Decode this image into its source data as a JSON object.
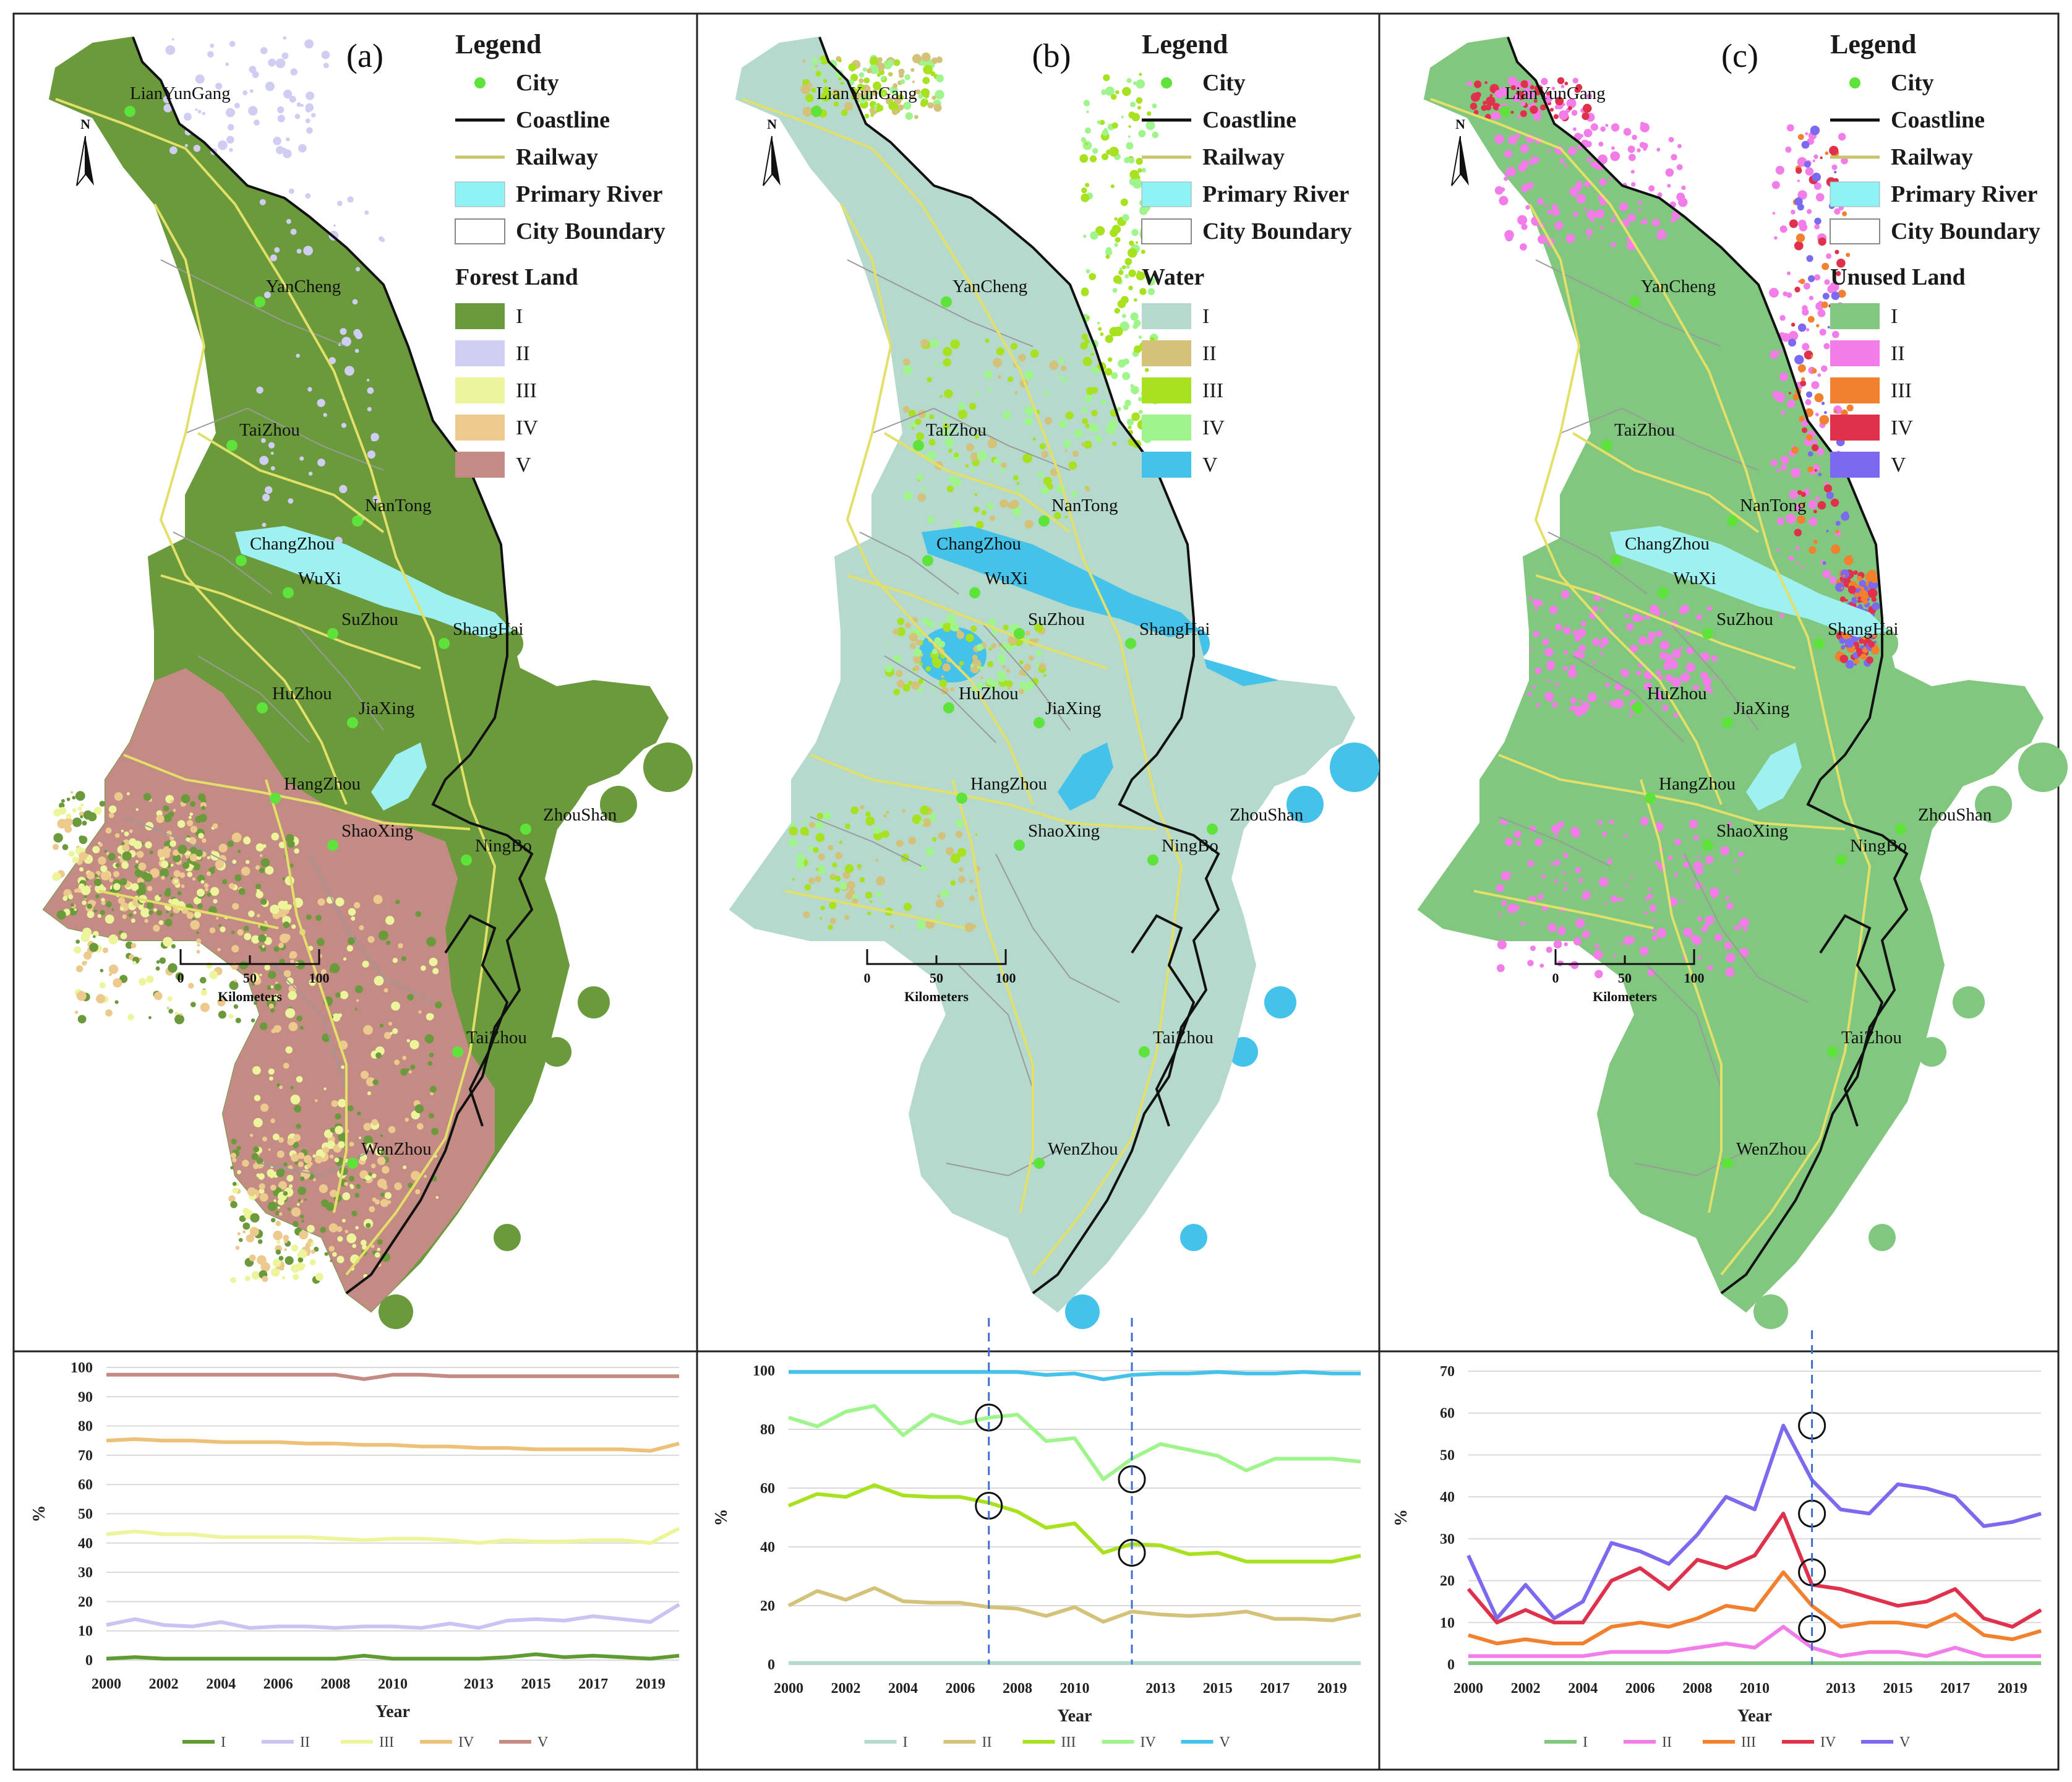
{
  "panels": [
    {
      "tag": "(a)",
      "legend_title": "Legend",
      "legend_items": [
        "City",
        "Coastline",
        "Railway",
        "Primary River",
        "City Boundary"
      ],
      "class_title": "Forest Land",
      "classes": [
        {
          "label": "I",
          "color": "#6b9a3c"
        },
        {
          "label": "II",
          "color": "#cfcdf2"
        },
        {
          "label": "III",
          "color": "#ecf59b"
        },
        {
          "label": "IV",
          "color": "#ecc98c"
        },
        {
          "label": "V",
          "color": "#c48b85"
        }
      ],
      "base_color": "#6b9a3c",
      "south_color": "#c48b85",
      "water_color": "#9ff1f1",
      "scale": {
        "ticks": [
          "0",
          "50",
          "100"
        ],
        "unit": "Kilometers"
      }
    },
    {
      "tag": "(b)",
      "legend_title": "Legend",
      "legend_items": [
        "City",
        "Coastline",
        "Railway",
        "Primary River",
        "City Boundary"
      ],
      "class_title": "Water",
      "classes": [
        {
          "label": "I",
          "color": "#b5d9cc"
        },
        {
          "label": "II",
          "color": "#d4c27a"
        },
        {
          "label": "III",
          "color": "#a8e11f"
        },
        {
          "label": "IV",
          "color": "#9ff58c"
        },
        {
          "label": "V",
          "color": "#44c2ea"
        }
      ],
      "base_color": "#b5d9cc",
      "south_color": "#b5d9cc",
      "water_color": "#44c2ea",
      "scale": {
        "ticks": [
          "0",
          "50",
          "100"
        ],
        "unit": "Kilometers"
      }
    },
    {
      "tag": "(c)",
      "legend_title": "Legend",
      "legend_items": [
        "City",
        "Coastline",
        "Railway",
        "Primary River",
        "City Boundary"
      ],
      "class_title": "Unused Land",
      "classes": [
        {
          "label": "I",
          "color": "#82c77f"
        },
        {
          "label": "II",
          "color": "#f37de8"
        },
        {
          "label": "III",
          "color": "#f2812f"
        },
        {
          "label": "IV",
          "color": "#e0314c"
        },
        {
          "label": "V",
          "color": "#7b6af0"
        }
      ],
      "base_color": "#82c77f",
      "south_color": "#82c77f",
      "water_color": "#9ff1f1",
      "scale": {
        "ticks": [
          "0",
          "50",
          "100"
        ],
        "unit": "Kilometers"
      }
    }
  ],
  "cities": [
    "LianYunGang",
    "YanCheng",
    "TaiZhou",
    "NanTong",
    "ChangZhou",
    "WuXi",
    "SuZhou",
    "ShangHai",
    "HuZhou",
    "JiaXing",
    "HangZhou",
    "ShaoXing",
    "NingBo",
    "ZhouShan",
    "TaiZhou",
    "WenZhou"
  ],
  "city_color": "#5de33a",
  "chart_data": [
    {
      "type": "line",
      "title": "",
      "xlabel": "Year",
      "ylabel": "%",
      "x": [
        2000,
        2001,
        2002,
        2003,
        2004,
        2005,
        2006,
        2007,
        2008,
        2009,
        2010,
        2011,
        2012,
        2013,
        2014,
        2015,
        2016,
        2017,
        2018,
        2019,
        2020
      ],
      "x_tick_labels": [
        "2000",
        "2002",
        "2004",
        "2006",
        "2008",
        "2010",
        "2013",
        "2015",
        "2017",
        "2019"
      ],
      "ylim": [
        0,
        100
      ],
      "y_ticks": [
        "0",
        "10",
        "20",
        "30",
        "40",
        "50",
        "60",
        "70",
        "80",
        "90",
        "100"
      ],
      "series": [
        {
          "name": "I",
          "color": "#5f9a32",
          "values": [
            0.5,
            1,
            0.5,
            0.5,
            0.5,
            0.5,
            0.5,
            0.5,
            0.5,
            1.5,
            0.5,
            0.5,
            0.5,
            0.5,
            1,
            2,
            1,
            1.5,
            1,
            0.5,
            1.5
          ]
        },
        {
          "name": "II",
          "color": "#c9c4f2",
          "values": [
            12,
            14,
            12,
            11.5,
            13,
            11,
            11.5,
            11.5,
            11,
            11.5,
            11.5,
            11,
            12.5,
            11,
            13.5,
            14,
            13.5,
            15,
            14,
            13,
            19
          ]
        },
        {
          "name": "III",
          "color": "#ecf59b",
          "values": [
            43,
            44,
            43,
            43,
            42,
            42,
            42,
            42,
            41.5,
            41,
            41.5,
            41.5,
            41,
            40,
            41,
            40.5,
            40.5,
            41,
            41,
            40,
            45
          ]
        },
        {
          "name": "IV",
          "color": "#eec17b",
          "values": [
            75,
            75.5,
            75,
            75,
            74.5,
            74.5,
            74.5,
            74,
            74,
            73.5,
            73.5,
            73,
            73,
            72.5,
            72.5,
            72,
            72,
            72,
            72,
            71.5,
            74
          ]
        },
        {
          "name": "V",
          "color": "#c48b85",
          "values": [
            97.5,
            97.5,
            97.5,
            97.5,
            97.5,
            97.5,
            97.5,
            97.5,
            97.5,
            96,
            97.5,
            97.5,
            97,
            97,
            97,
            97,
            97,
            97,
            97,
            97,
            97
          ]
        }
      ],
      "legend_position": "bottom"
    },
    {
      "type": "line",
      "title": "",
      "xlabel": "Year",
      "ylabel": "%",
      "x": [
        2000,
        2001,
        2002,
        2003,
        2004,
        2005,
        2006,
        2007,
        2008,
        2009,
        2010,
        2011,
        2012,
        2013,
        2014,
        2015,
        2016,
        2017,
        2018,
        2019,
        2020
      ],
      "x_tick_labels": [
        "2000",
        "2002",
        "2004",
        "2006",
        "2008",
        "2010",
        "2013",
        "2015",
        "2017",
        "2019"
      ],
      "ylim": [
        0,
        100
      ],
      "y_ticks": [
        "0",
        "20",
        "40",
        "60",
        "80",
        "100"
      ],
      "series": [
        {
          "name": "I",
          "color": "#b5d9cc",
          "values": [
            0.5,
            0.5,
            0.5,
            0.5,
            0.5,
            0.5,
            0.5,
            0.5,
            0.5,
            0.5,
            0.5,
            0.5,
            0.5,
            0.5,
            0.5,
            0.5,
            0.5,
            0.5,
            0.5,
            0.5,
            0.5
          ]
        },
        {
          "name": "II",
          "color": "#d4c27a",
          "values": [
            20,
            25,
            22,
            26,
            21.5,
            21,
            21,
            19.5,
            19,
            16.5,
            19.5,
            14.5,
            18,
            17,
            16.5,
            17,
            18,
            15.5,
            15.5,
            15,
            17
          ]
        },
        {
          "name": "III",
          "color": "#a8e11f",
          "values": [
            54,
            58,
            57,
            61,
            57.5,
            57,
            57,
            55,
            52,
            46.5,
            48,
            38,
            41,
            40.5,
            37.5,
            38,
            35,
            35,
            35,
            35,
            37
          ]
        },
        {
          "name": "IV",
          "color": "#9ff58c",
          "values": [
            84,
            81,
            86,
            88,
            78,
            85,
            82,
            84,
            85,
            76,
            77,
            63,
            70,
            75,
            73,
            71,
            66,
            70,
            70,
            70,
            69
          ]
        },
        {
          "name": "V",
          "color": "#44c2ea",
          "values": [
            99.5,
            99.5,
            99.5,
            99.5,
            99.5,
            99.5,
            99.5,
            99.5,
            99.5,
            98.5,
            99,
            97,
            98.5,
            99,
            99,
            99.5,
            99,
            99,
            99.5,
            99,
            99
          ]
        }
      ],
      "legend_position": "bottom"
    },
    {
      "type": "line",
      "title": "",
      "xlabel": "Year",
      "ylabel": "%",
      "x": [
        2000,
        2001,
        2002,
        2003,
        2004,
        2005,
        2006,
        2007,
        2008,
        2009,
        2010,
        2011,
        2012,
        2013,
        2014,
        2015,
        2016,
        2017,
        2018,
        2019,
        2020
      ],
      "x_tick_labels": [
        "2000",
        "2002",
        "2004",
        "2006",
        "2008",
        "2010",
        "2013",
        "2015",
        "2017",
        "2019"
      ],
      "ylim": [
        0,
        70
      ],
      "y_ticks": [
        "0",
        "10",
        "20",
        "30",
        "40",
        "50",
        "60",
        "70"
      ],
      "series": [
        {
          "name": "I",
          "color": "#82c77f",
          "values": [
            0.3,
            0.3,
            0.3,
            0.3,
            0.3,
            0.3,
            0.3,
            0.3,
            0.3,
            0.3,
            0.3,
            0.3,
            0.3,
            0.3,
            0.3,
            0.3,
            0.3,
            0.3,
            0.3,
            0.3,
            0.3
          ]
        },
        {
          "name": "II",
          "color": "#f37de8",
          "values": [
            2,
            2,
            2,
            2,
            2,
            3,
            3,
            3,
            4,
            5,
            4,
            9,
            4,
            2,
            3,
            3,
            2,
            4,
            2,
            2,
            2
          ]
        },
        {
          "name": "III",
          "color": "#f2812f",
          "values": [
            7,
            5,
            6,
            5,
            5,
            9,
            10,
            9,
            11,
            14,
            13,
            22,
            14,
            9,
            10,
            10,
            9,
            12,
            7,
            6,
            8
          ]
        },
        {
          "name": "IV",
          "color": "#e0314c",
          "values": [
            18,
            10,
            13,
            10,
            10,
            20,
            23,
            18,
            25,
            23,
            26,
            36,
            19,
            18,
            16,
            14,
            15,
            18,
            11,
            9,
            13
          ]
        },
        {
          "name": "V",
          "color": "#7b6af0",
          "values": [
            26,
            11,
            19,
            11,
            15,
            29,
            27,
            24,
            31,
            40,
            37,
            57,
            44,
            37,
            36,
            43,
            42,
            40,
            33,
            34,
            36
          ]
        }
      ],
      "legend_position": "bottom"
    }
  ]
}
